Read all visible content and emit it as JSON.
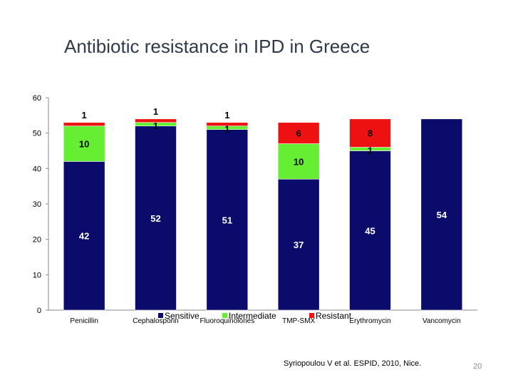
{
  "slide": {
    "title": "Antibiotic resistance in IPD in Greece",
    "citation": "Syriopoulou V et al. ESPID, 2010, Nice.",
    "page_number": "20"
  },
  "chart_data": {
    "type": "bar",
    "stacked": true,
    "title": "",
    "xlabel": "",
    "ylabel": "",
    "categories": [
      "Penicillin",
      "Cephalosporin",
      "Fluoroquinolones",
      "TMP-SMX",
      "Erythromycin",
      "Vancomycin"
    ],
    "series": [
      {
        "name": "Sensitive",
        "color": "#0b0b6b",
        "values": [
          42,
          52,
          51,
          37,
          45,
          54
        ]
      },
      {
        "name": "Intermediate",
        "color": "#66ee33",
        "values": [
          10,
          1,
          1,
          10,
          1,
          0
        ]
      },
      {
        "name": "Resistant",
        "color": "#ee1111",
        "values": [
          1,
          1,
          1,
          6,
          8,
          0
        ]
      }
    ],
    "ylim": [
      0,
      60
    ],
    "yticks": [
      0,
      10,
      20,
      30,
      40,
      50,
      60
    ],
    "grid": false,
    "legend": "bottom-center"
  }
}
